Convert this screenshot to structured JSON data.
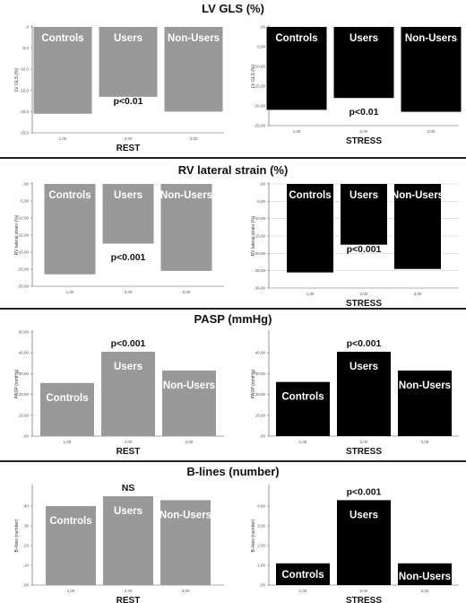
{
  "colors": {
    "rest": "#999999",
    "stress": "#000000",
    "axis": "#555555",
    "grid": "#bbbbbb"
  },
  "sections": [
    {
      "title": "LV GLS (%)"
    },
    {
      "title": "RV lateral strain (%)"
    },
    {
      "title": "PASP (mmHg)"
    },
    {
      "title": "B-lines (number)"
    }
  ],
  "chart_data": [
    {
      "type": "bar",
      "orientation": "downward",
      "categories": [
        "Controls",
        "Users",
        "Non-Users"
      ],
      "values": [
        -20.5,
        -16.5,
        -20.0
      ],
      "ylim": [
        0,
        -25
      ],
      "yticks": [
        0,
        -5,
        -10,
        -15,
        -20,
        -25
      ],
      "yticklabels": [
        ",0",
        "-5,0",
        "-10,0",
        "-15,0",
        "-20,0",
        "-25,0"
      ],
      "xticklabels": [
        "1,00",
        "2,00",
        "3,00"
      ],
      "xlabel": "REST",
      "ylabel": "LV GLS (%)",
      "annotation": "p<0.01",
      "color": "#999999",
      "grid": false
    },
    {
      "type": "bar",
      "orientation": "downward",
      "categories": [
        "Controls",
        "Users",
        "Non-Users"
      ],
      "values": [
        -21.0,
        -18.0,
        -21.5
      ],
      "ylim": [
        0,
        -25
      ],
      "yticks": [
        0,
        -5,
        -10,
        -15,
        -20,
        -25
      ],
      "yticklabels": [
        ",00",
        "-5,00",
        "-10,00",
        "-15,00",
        "-20,00",
        "-25,00"
      ],
      "xticklabels": [
        "1,00",
        "2,00",
        "3,00"
      ],
      "xlabel": "STRESS",
      "ylabel": "LV GLS (%)",
      "annotation": "p<0.01",
      "color": "#000000",
      "grid": false
    },
    {
      "type": "bar",
      "orientation": "downward",
      "categories": [
        "Controls",
        "Users",
        "Non-Users"
      ],
      "values": [
        -26.5,
        -17.5,
        -25.5
      ],
      "ylim": [
        0,
        -30
      ],
      "yticks": [
        0,
        -5,
        -10,
        -15,
        -20,
        -25,
        -30
      ],
      "yticklabels": [
        ",00",
        "-5,00",
        "-10,00",
        "-15,00",
        "-20,00",
        "-25,00",
        "-30,00"
      ],
      "xticklabels": [
        "1,00",
        "2,00",
        "3,00"
      ],
      "xlabel": "",
      "ylabel": "RV lateral strain (%)",
      "annotation": "p<0.001",
      "color": "#999999",
      "grid": false
    },
    {
      "type": "bar",
      "orientation": "downward",
      "categories": [
        "Controls",
        "Users",
        "Non-Users"
      ],
      "values": [
        -25.5,
        -17.5,
        -24.5
      ],
      "ylim": [
        0,
        -30
      ],
      "yticks": [
        0,
        -5,
        -10,
        -15,
        -20,
        -25,
        -30
      ],
      "yticklabels": [
        ",00",
        "-5,00",
        "-10,00",
        "-15,00",
        "-20,00",
        "-25,00",
        "-30,00"
      ],
      "xticklabels": [
        "1,00",
        "2,00",
        "3,00"
      ],
      "xlabel": "STRESS",
      "ylabel": "RV lateral strain (%)",
      "annotation": "p<0.001",
      "color": "#000000",
      "grid": true
    },
    {
      "type": "bar",
      "orientation": "upward",
      "categories": [
        "Controls",
        "Users",
        "Non-Users"
      ],
      "values": [
        25.5,
        40.5,
        31.5
      ],
      "ylim": [
        0,
        50
      ],
      "yticks": [
        0,
        10,
        20,
        30,
        40,
        50
      ],
      "yticklabels": [
        ",00",
        "10,00",
        "20,00",
        "30,00",
        "40,00",
        "50,00"
      ],
      "xticklabels": [
        "1,00",
        "2,00",
        "3,00"
      ],
      "xlabel": "REST",
      "ylabel": "PASP (mmHg)",
      "annotation": "p<0.001",
      "color": "#999999",
      "grid": false
    },
    {
      "type": "bar",
      "orientation": "upward",
      "categories": [
        "Controls",
        "Users",
        "Non-Users"
      ],
      "values": [
        26.0,
        40.5,
        31.5
      ],
      "ylim": [
        0,
        50
      ],
      "yticks": [
        0,
        10,
        20,
        30,
        40
      ],
      "yticklabels": [
        ",00",
        "10,00",
        "20,00",
        "30,00",
        "40,00"
      ],
      "xticklabels": [
        "1,00",
        "2,00",
        "3,00"
      ],
      "xlabel": "STRESS",
      "ylabel": "PASP (mmHg)",
      "annotation": "p<0.001",
      "color": "#000000",
      "grid": false
    },
    {
      "type": "bar",
      "orientation": "upward",
      "categories": [
        "Controls",
        "Users",
        "Non-Users"
      ],
      "values": [
        0.4,
        0.45,
        0.43
      ],
      "ylim": [
        0,
        0.5
      ],
      "yticks": [
        0,
        0.1,
        0.2,
        0.3,
        0.4
      ],
      "yticklabels": [
        ",00",
        ",10",
        ",20",
        ",30",
        ",40"
      ],
      "xticklabels": [
        "1,00",
        "2,00",
        "3,00"
      ],
      "xlabel": "REST",
      "ylabel": "B-lines (number)",
      "annotation": "NS",
      "color": "#999999",
      "grid": false
    },
    {
      "type": "bar",
      "orientation": "upward",
      "categories": [
        "Controls",
        "Users",
        "Non-Users"
      ],
      "values": [
        1.1,
        4.3,
        1.1
      ],
      "ylim": [
        0,
        5
      ],
      "yticks": [
        0,
        1,
        2,
        3,
        4
      ],
      "yticklabels": [
        ",00",
        "1,00",
        "2,00",
        "3,00",
        "4,00"
      ],
      "xticklabels": [
        "1,00",
        "2,00",
        "3,00"
      ],
      "xlabel": "STRESS",
      "ylabel": "B-lines (number)",
      "annotation": "p<0.001",
      "color": "#000000",
      "grid": false
    }
  ]
}
